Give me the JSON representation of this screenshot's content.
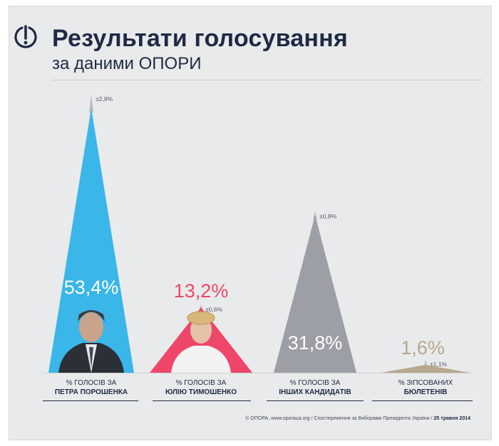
{
  "header": {
    "title": "Результати голосування",
    "subtitle": "за даними ОПОРИ"
  },
  "chart_data": {
    "type": "bar",
    "ylim": [
      0,
      100
    ],
    "categories": [
      {
        "line1": "% ГОЛОСІВ ЗА",
        "line2": "ПЕТРА ПОРОШЕНКА"
      },
      {
        "line1": "% ГОЛОСІВ ЗА",
        "line2": "ЮЛІЮ ТИМОШЕНКО"
      },
      {
        "line1": "% ГОЛОСІВ ЗА",
        "line2": "ІНШИХ КАНДИДАТІВ"
      },
      {
        "line1": "% ЗІПСОВАНИХ",
        "line2": "БЮЛЕТЕНІВ"
      }
    ],
    "values": [
      53.4,
      13.2,
      31.8,
      1.6
    ],
    "value_labels": [
      "53,4%",
      "13,2%",
      "31,8%",
      "1,6%"
    ],
    "errors": [
      2.9,
      0.6,
      0.8,
      1.1
    ],
    "error_labels": [
      "±2,9%",
      "±0,6%",
      "±0,8%",
      "±1,1%"
    ],
    "colors": [
      "#3ab6e8",
      "#ee4769",
      "#9c9fa6",
      "#b6a88d"
    ],
    "value_label_colors": [
      "#ffffff",
      "#ee4769",
      "#ffffff",
      "#b6a88d"
    ]
  },
  "footer": {
    "text": "© ОПОРА, www.oporaua.org / Спостереження за Виборами Президента України / ",
    "date": "25 травня 2014"
  }
}
